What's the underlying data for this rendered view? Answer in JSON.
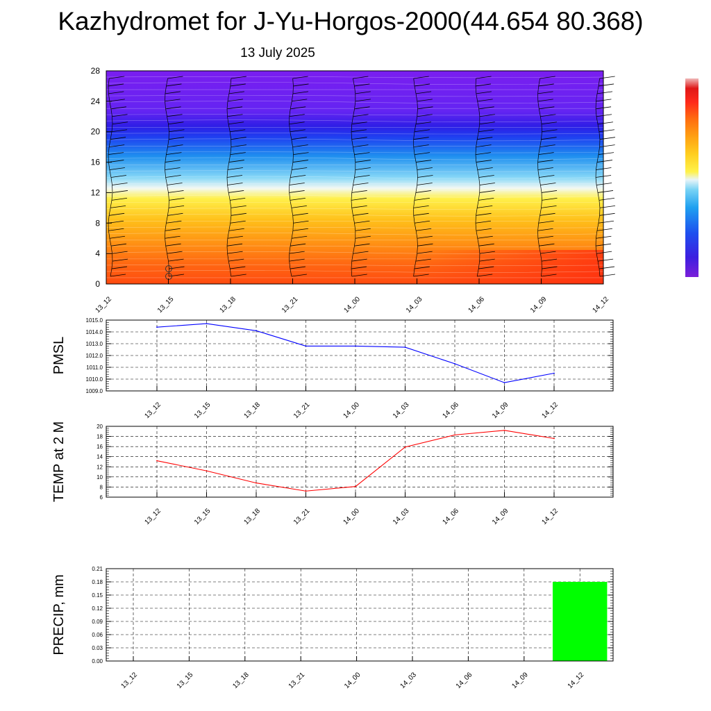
{
  "title": "Kazhydromet for J-Yu-Horgos-2000(44.654 80.368)",
  "date": "13 July 2025",
  "chart_data": [
    {
      "type": "heatmap",
      "y_ticks": [
        "0",
        "4",
        "8",
        "12",
        "16",
        "20",
        "24",
        "28"
      ],
      "ylim": [
        0,
        28
      ],
      "x_ticks": [
        "13_12",
        "13_15",
        "13_18",
        "13_21",
        "14_00",
        "14_03",
        "14_06",
        "14_09",
        "14_12"
      ],
      "colorbar": [
        "#7b1fd9",
        "#3c1fe0",
        "#1e4fef",
        "#1fa0f0",
        "#78d3f5",
        "#e8f4f8",
        "#fff24a",
        "#ffce1f",
        "#ff9f12",
        "#ff6a10",
        "#ff2a1a",
        "#e01818",
        "#f0b8b8"
      ]
    },
    {
      "type": "line",
      "ylabel": "PMSL",
      "x": [
        "13_12",
        "13_15",
        "13_18",
        "13_21",
        "14_00",
        "14_03",
        "14_06",
        "14_09",
        "14_12"
      ],
      "series": [
        {
          "values": [
            1014.4,
            1014.7,
            1014.1,
            1012.8,
            1012.8,
            1012.7,
            1011.3,
            1009.7,
            1010.5
          ],
          "color": "#0000ff"
        }
      ],
      "ylim": [
        1009.0,
        1015.0
      ],
      "y_ticks": [
        "1009.0",
        "1010.0",
        "1011.0",
        "1012.0",
        "1013.0",
        "1014.0",
        "1015.0"
      ],
      "grid": true
    },
    {
      "type": "line",
      "ylabel": "TEMP at 2 M",
      "x": [
        "13_12",
        "13_15",
        "13_18",
        "13_21",
        "14_00",
        "14_03",
        "14_06",
        "14_09",
        "14_12"
      ],
      "series": [
        {
          "values": [
            13.2,
            11.2,
            8.8,
            7.2,
            8.1,
            15.9,
            18.3,
            19.2,
            17.6
          ],
          "color": "#ff0000"
        }
      ],
      "ylim": [
        6,
        20
      ],
      "y_ticks": [
        "6",
        "8",
        "10",
        "12",
        "14",
        "16",
        "18",
        "20"
      ],
      "grid": true
    },
    {
      "type": "bar",
      "ylabel": "PRECIP, mm",
      "categories": [
        "13_12",
        "13_15",
        "13_18",
        "13_21",
        "14_00",
        "14_03",
        "14_06",
        "14_09",
        "14_12"
      ],
      "values": [
        0,
        0,
        0,
        0,
        0,
        0,
        0,
        0,
        0.18
      ],
      "color": "#00ff00",
      "ylim": [
        0,
        0.21
      ],
      "y_ticks": [
        "0.00",
        "0.03",
        "0.06",
        "0.09",
        "0.12",
        "0.15",
        "0.18",
        "0.21"
      ],
      "grid": true
    }
  ]
}
